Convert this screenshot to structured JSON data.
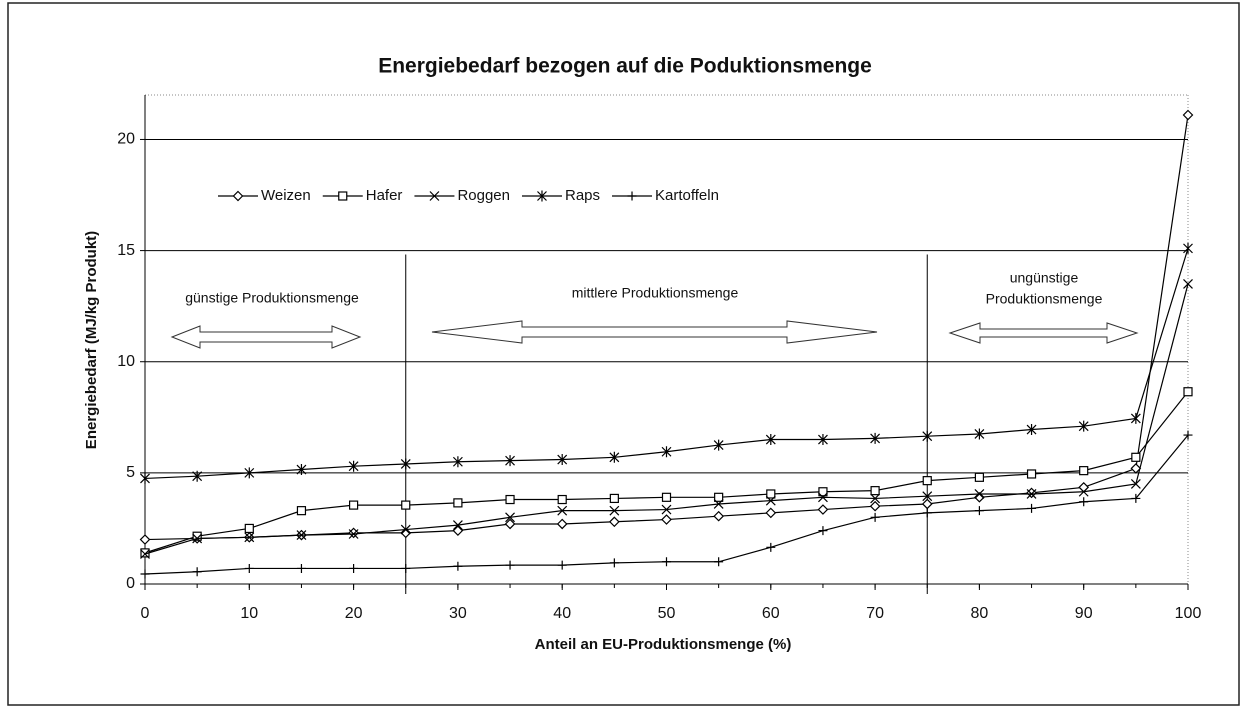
{
  "chart_data": {
    "type": "line",
    "title": "Energiebedarf bezogen auf die Poduktionsmenge",
    "xlabel": "Anteil an EU-Produktionsmenge (%)",
    "ylabel": "Energiebedarf (MJ/kg Produkt)",
    "x": [
      0,
      5,
      10,
      15,
      20,
      25,
      30,
      35,
      40,
      45,
      50,
      55,
      60,
      65,
      70,
      75,
      80,
      85,
      90,
      95,
      100
    ],
    "series": [
      {
        "name": "Weizen",
        "color": "#000000",
        "marker": "diamond",
        "values": [
          2.0,
          2.05,
          2.1,
          2.2,
          2.3,
          2.3,
          2.4,
          2.7,
          2.7,
          2.8,
          2.9,
          3.05,
          3.2,
          3.35,
          3.5,
          3.6,
          3.9,
          4.1,
          4.35,
          5.2,
          21.1
        ]
      },
      {
        "name": "Hafer",
        "color": "#000000",
        "marker": "square",
        "values": [
          1.4,
          2.15,
          2.5,
          3.3,
          3.55,
          3.55,
          3.65,
          3.8,
          3.8,
          3.85,
          3.9,
          3.9,
          4.05,
          4.15,
          4.2,
          4.65,
          4.8,
          4.95,
          5.1,
          5.7,
          8.65
        ]
      },
      {
        "name": "Roggen",
        "color": "#000000",
        "marker": "x",
        "values": [
          1.35,
          2.05,
          2.1,
          2.2,
          2.25,
          2.45,
          2.65,
          3.0,
          3.3,
          3.3,
          3.35,
          3.6,
          3.75,
          3.9,
          3.85,
          3.95,
          4.05,
          4.05,
          4.15,
          4.5,
          13.5
        ]
      },
      {
        "name": "Raps",
        "color": "#000000",
        "marker": "asterisk",
        "values": [
          4.75,
          4.85,
          5.0,
          5.15,
          5.3,
          5.4,
          5.5,
          5.55,
          5.6,
          5.7,
          5.95,
          6.25,
          6.5,
          6.5,
          6.55,
          6.65,
          6.75,
          6.95,
          7.1,
          7.45,
          15.1
        ]
      },
      {
        "name": "Kartoffeln",
        "color": "#000000",
        "marker": "plus",
        "values": [
          0.45,
          0.55,
          0.7,
          0.7,
          0.7,
          0.7,
          0.8,
          0.85,
          0.85,
          0.95,
          1.0,
          1.0,
          1.65,
          2.4,
          3.0,
          3.2,
          3.3,
          3.4,
          3.7,
          3.85,
          6.7
        ]
      }
    ],
    "xlim": [
      0,
      100
    ],
    "xticks": [
      0,
      10,
      20,
      30,
      40,
      50,
      60,
      70,
      80,
      90,
      100
    ],
    "ylim": [
      0,
      22
    ],
    "yticks": [
      0,
      5,
      10,
      15,
      20
    ],
    "grid": true,
    "legend": "upper left",
    "dividers": [
      25,
      75
    ],
    "annotations": [
      {
        "lines": [
          "günstige Produktionsmenge"
        ]
      },
      {
        "lines": [
          "mittlere Produktionsmenge"
        ]
      },
      {
        "lines": [
          "ungünstige",
          "Produktionsmenge"
        ]
      }
    ]
  }
}
